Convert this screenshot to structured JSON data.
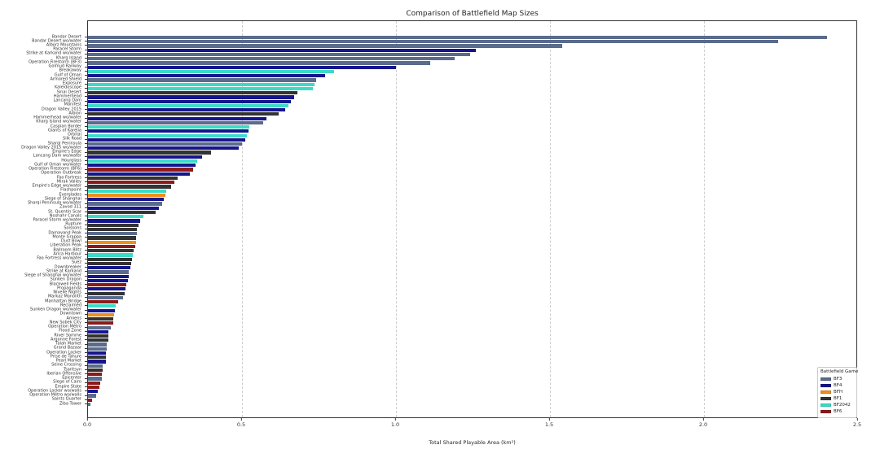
{
  "chart_data": {
    "type": "bar",
    "orientation": "horizontal",
    "title": "Comparison of Battlefield Map Sizes",
    "xlabel": "Total Shared Playable Area (km²)",
    "ylabel": "",
    "xlim": [
      0,
      2.5
    ],
    "xtick_labels": [
      "0.0",
      "0.5",
      "1.0",
      "1.5",
      "2.0",
      "2.5"
    ],
    "xtick_values": [
      0.0,
      0.5,
      1.0,
      1.5,
      2.0,
      2.5
    ],
    "grid": "vertical-dashed",
    "legend": {
      "title": "Battlefield Game",
      "position": "lower right",
      "entries": [
        {
          "label": "BF3",
          "color": "#5a6b8c"
        },
        {
          "label": "BF4",
          "color": "#15158c"
        },
        {
          "label": "BFH",
          "color": "#ef8e1b"
        },
        {
          "label": "BF1",
          "color": "#333333"
        },
        {
          "label": "BF2042",
          "color": "#3cdbc8"
        },
        {
          "label": "BF6",
          "color": "#8b1a1a"
        }
      ]
    },
    "colors": {
      "BF3": "#5a6b8c",
      "BF4": "#15158c",
      "BFH": "#ef8e1b",
      "BF1": "#333333",
      "BF2042": "#3cdbc8",
      "BF6": "#8b1a1a"
    },
    "bars": [
      {
        "label": "Bandar Desert",
        "game": "BF3",
        "value": 2.4
      },
      {
        "label": "Bandar Desert wo/water",
        "game": "BF3",
        "value": 2.24
      },
      {
        "label": "Alborz Mountains",
        "game": "BF3",
        "value": 1.54
      },
      {
        "label": "Paracel Storm",
        "game": "BF4",
        "value": 1.26
      },
      {
        "label": "Strike at Karkand wo/water",
        "game": "BF3",
        "value": 1.24
      },
      {
        "label": "Kharg Island",
        "game": "BF3",
        "value": 1.19
      },
      {
        "label": "Operation Firestorm (BF3)",
        "game": "BF3",
        "value": 1.11
      },
      {
        "label": "Golmud Railway",
        "game": "BF4",
        "value": 1.0
      },
      {
        "label": "Breakaway",
        "game": "BF2042",
        "value": 0.8
      },
      {
        "label": "Gulf of Oman",
        "game": "BF4",
        "value": 0.77
      },
      {
        "label": "Armored Shield",
        "game": "BF3",
        "value": 0.74
      },
      {
        "label": "Exposure",
        "game": "BF2042",
        "value": 0.735
      },
      {
        "label": "Kaleidoscope",
        "game": "BF2042",
        "value": 0.73
      },
      {
        "label": "Sinai Desert",
        "game": "BF1",
        "value": 0.68
      },
      {
        "label": "Hammerhead",
        "game": "BF4",
        "value": 0.67
      },
      {
        "label": "Lancang Dam",
        "game": "BF4",
        "value": 0.66
      },
      {
        "label": "Manifest",
        "game": "BF2042",
        "value": 0.65
      },
      {
        "label": "Dragon Valley 2015",
        "game": "BF4",
        "value": 0.64
      },
      {
        "label": "Albion",
        "game": "BF1",
        "value": 0.62
      },
      {
        "label": "Hammerhead wo/water",
        "game": "BF4",
        "value": 0.58
      },
      {
        "label": "Kharg Island wo/water",
        "game": "BF3",
        "value": 0.57
      },
      {
        "label": "Caspian Border",
        "game": "BF2042",
        "value": 0.525
      },
      {
        "label": "Giants of Karelia",
        "game": "BF4",
        "value": 0.52
      },
      {
        "label": "Orbital",
        "game": "BF2042",
        "value": 0.515
      },
      {
        "label": "Silk Road",
        "game": "BF4",
        "value": 0.51
      },
      {
        "label": "Sharqi Peninsula",
        "game": "BF3",
        "value": 0.5
      },
      {
        "label": "Dragon Valley 2015 wo/water",
        "game": "BF4",
        "value": 0.49
      },
      {
        "label": "Empire's Edge",
        "game": "BF1",
        "value": 0.4
      },
      {
        "label": "Lancang Dam wo/water",
        "game": "BF4",
        "value": 0.37
      },
      {
        "label": "Hourglass",
        "game": "BF2042",
        "value": 0.355
      },
      {
        "label": "Gulf of Oman wo/water",
        "game": "BF4",
        "value": 0.35
      },
      {
        "label": "Operation Firestorm (BF6)",
        "game": "BF6",
        "value": 0.34
      },
      {
        "label": "Operation Outbreak",
        "game": "BF4",
        "value": 0.33
      },
      {
        "label": "Fao Fortress",
        "game": "BF1",
        "value": 0.29
      },
      {
        "label": "Mirak Valley",
        "game": "BF6",
        "value": 0.28
      },
      {
        "label": "Empire's Edge wo/water",
        "game": "BF1",
        "value": 0.27
      },
      {
        "label": "Flashpoint",
        "game": "BF2042",
        "value": 0.255
      },
      {
        "label": "Everglades",
        "game": "BFH",
        "value": 0.25
      },
      {
        "label": "Siege of Shanghai",
        "game": "BF4",
        "value": 0.245
      },
      {
        "label": "Sharqi Peninsula wo/water",
        "game": "BF3",
        "value": 0.24
      },
      {
        "label": "Zavod 311",
        "game": "BF4",
        "value": 0.23
      },
      {
        "label": "St. Quentin Scar",
        "game": "BF1",
        "value": 0.22
      },
      {
        "label": "Noshahr Canals",
        "game": "BF2042",
        "value": 0.18
      },
      {
        "label": "Paracel Storm wo/water",
        "game": "BF4",
        "value": 0.17
      },
      {
        "label": "Rupture",
        "game": "BF1",
        "value": 0.163
      },
      {
        "label": "Soissons",
        "game": "BF1",
        "value": 0.16
      },
      {
        "label": "Damavand Peak",
        "game": "BF3",
        "value": 0.158
      },
      {
        "label": "Monte Grappa",
        "game": "BF1",
        "value": 0.156
      },
      {
        "label": "Dust Bowl",
        "game": "BFH",
        "value": 0.155
      },
      {
        "label": "Liberation Peak",
        "game": "BF6",
        "value": 0.153
      },
      {
        "label": "Ballroom Blitz",
        "game": "BF1",
        "value": 0.147
      },
      {
        "label": "Arica Harbour",
        "game": "BF2042",
        "value": 0.145
      },
      {
        "label": "Fao Fortress wo/water",
        "game": "BF1",
        "value": 0.142
      },
      {
        "label": "Suez",
        "game": "BF1",
        "value": 0.14
      },
      {
        "label": "Dawnbreaker",
        "game": "BF4",
        "value": 0.137
      },
      {
        "label": "Strike at Karkand",
        "game": "BF3",
        "value": 0.133
      },
      {
        "label": "Siege of Shanghai wo/water",
        "game": "BF4",
        "value": 0.131
      },
      {
        "label": "Sunken Dragon",
        "game": "BF4",
        "value": 0.13
      },
      {
        "label": "Blackwell Fields",
        "game": "BF6",
        "value": 0.125
      },
      {
        "label": "Propaganda",
        "game": "BF4",
        "value": 0.122
      },
      {
        "label": "Nivelle Nights",
        "game": "BF1",
        "value": 0.12
      },
      {
        "label": "Markaz Monolith",
        "game": "BF3",
        "value": 0.115
      },
      {
        "label": "Manhattan Bridge",
        "game": "BF6",
        "value": 0.099
      },
      {
        "label": "Reclaimed",
        "game": "BF2042",
        "value": 0.09
      },
      {
        "label": "Sunken Dragon wo/water",
        "game": "BF4",
        "value": 0.088
      },
      {
        "label": "Downtown",
        "game": "BFH",
        "value": 0.085
      },
      {
        "label": "Amiens",
        "game": "BF1",
        "value": 0.083
      },
      {
        "label": "New Sobek City",
        "game": "BF6",
        "value": 0.082
      },
      {
        "label": "Operation Métro",
        "game": "BF3",
        "value": 0.075
      },
      {
        "label": "Flood Zone",
        "game": "BF4",
        "value": 0.067
      },
      {
        "label": "River Somme",
        "game": "BF1",
        "value": 0.066
      },
      {
        "label": "Argonne Forest",
        "game": "BF1",
        "value": 0.065
      },
      {
        "label": "Talah Market",
        "game": "BF3",
        "value": 0.061
      },
      {
        "label": "Grand Bazaar",
        "game": "BF3",
        "value": 0.06
      },
      {
        "label": "Operation Locker",
        "game": "BF4",
        "value": 0.059
      },
      {
        "label": "Prise de Tahure",
        "game": "BF1",
        "value": 0.058
      },
      {
        "label": "Pearl Market",
        "game": "BF4",
        "value": 0.057
      },
      {
        "label": "Seine Crossing",
        "game": "BF3",
        "value": 0.048
      },
      {
        "label": "Tsaritsyn",
        "game": "BF1",
        "value": 0.047
      },
      {
        "label": "Iberian Offensive",
        "game": "BF6",
        "value": 0.046
      },
      {
        "label": "Epicenter",
        "game": "BF3",
        "value": 0.044
      },
      {
        "label": "Siege of Cairo",
        "game": "BF6",
        "value": 0.04
      },
      {
        "label": "Empire State",
        "game": "BF6",
        "value": 0.036
      },
      {
        "label": "Operation Locker wo/walls",
        "game": "BF4",
        "value": 0.032
      },
      {
        "label": "Operation Métro wo/walls",
        "game": "BF3",
        "value": 0.026
      },
      {
        "label": "Saints Quarter",
        "game": "BF6",
        "value": 0.013
      },
      {
        "label": "Ziba Tower",
        "game": "BF3",
        "value": 0.007
      }
    ]
  }
}
